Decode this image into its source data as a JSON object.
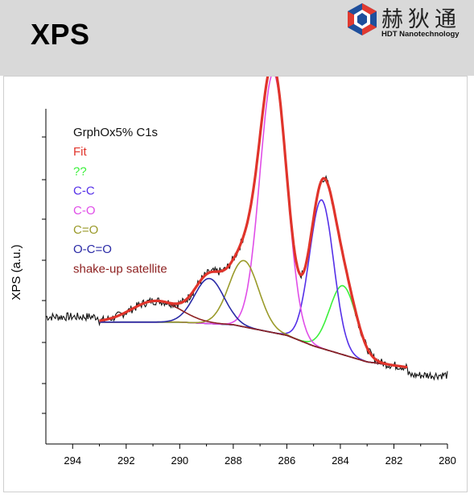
{
  "header": {
    "title": "XPS",
    "logo_cn": "赫狄通",
    "logo_en": "HDT Nanotechnology",
    "background": "#d9d9d9"
  },
  "chart_data": {
    "type": "line",
    "title": "",
    "xlabel": "",
    "ylabel": "XPS (a.u.)",
    "xlim": [
      295,
      280
    ],
    "x_reversed": true,
    "xticks": [
      "294",
      "292",
      "290",
      "288",
      "286",
      "284",
      "282",
      "280"
    ],
    "ylim": [
      0,
      100
    ],
    "legend_position": "top-left",
    "legend_title": "GrphOx5% C1s",
    "series": [
      {
        "name": "Fit",
        "color": "#e0342b"
      },
      {
        "name": "??",
        "color": "#3cf03c"
      },
      {
        "name": "C-C",
        "color": "#5530e8"
      },
      {
        "name": "C-O",
        "color": "#e04ee8"
      },
      {
        "name": "C=O",
        "color": "#9a9a2a"
      },
      {
        "name": "O-C=O",
        "color": "#2a2aa6"
      },
      {
        "name": "shake-up satellite",
        "color": "#8e2222"
      }
    ],
    "peaks": {
      "??": {
        "center": 283.9,
        "height": 26,
        "width": 0.5
      },
      "C-C": {
        "center": 284.7,
        "height": 56,
        "width": 0.45
      },
      "C-O": {
        "center": 286.5,
        "height": 98,
        "width": 0.5
      },
      "C=O": {
        "center": 287.6,
        "height": 25,
        "width": 0.55
      },
      "O-C=O": {
        "center": 288.9,
        "height": 17,
        "width": 0.55
      },
      "shake-up satellite": {
        "center": 290.9,
        "height": 8,
        "width": 0.9
      }
    },
    "background": [
      [
        293,
        25
      ],
      [
        290,
        25
      ],
      [
        288,
        24
      ],
      [
        286,
        20
      ],
      [
        285,
        16
      ],
      [
        284,
        13
      ],
      [
        283,
        10
      ],
      [
        281.5,
        8
      ]
    ],
    "data_range": [
      293,
      281.5
    ],
    "raw_range": [
      295,
      280
    ]
  }
}
